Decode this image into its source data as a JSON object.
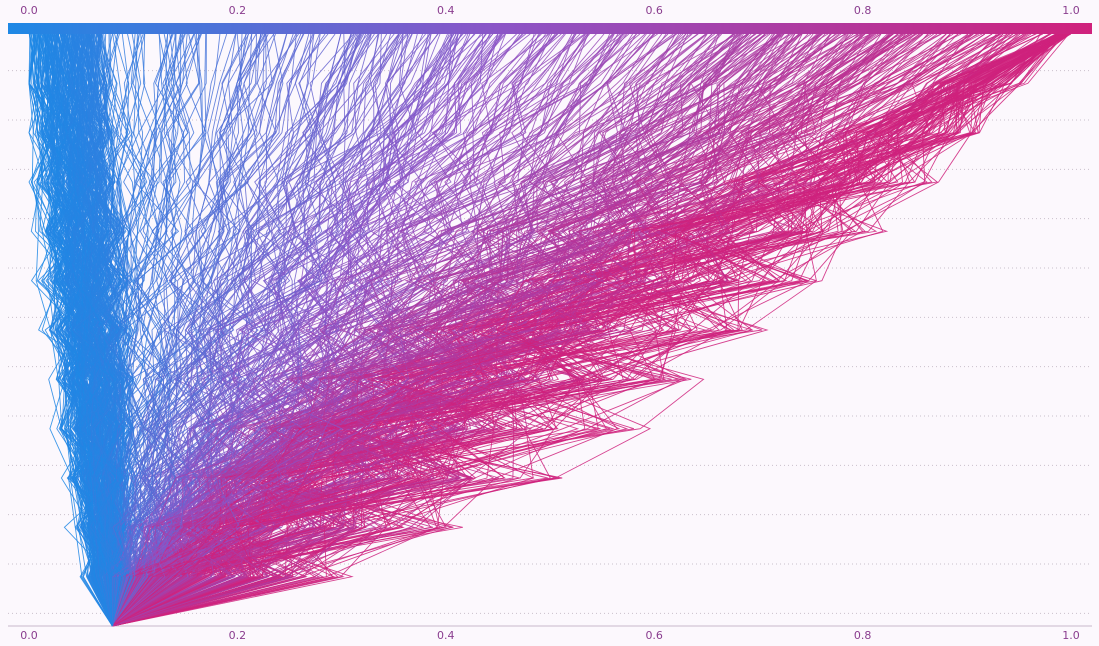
{
  "chart_data": {
    "type": "line",
    "title": "",
    "xlabel": "",
    "ylabel": "",
    "xlim": [
      0,
      1
    ],
    "x_ticks": [
      "0.0",
      "0.2",
      "0.4",
      "0.6",
      "0.8",
      "1.0"
    ],
    "tick_values": [
      0,
      0.2,
      0.4,
      0.6,
      0.8,
      1.0
    ],
    "colorbar": {
      "from": "#1e88e5",
      "to": "#d0217c"
    },
    "rows": 12,
    "grid": true,
    "n_paths": 900,
    "description_of_shape": "many decision paths spread across x from 0 to 1"
  }
}
